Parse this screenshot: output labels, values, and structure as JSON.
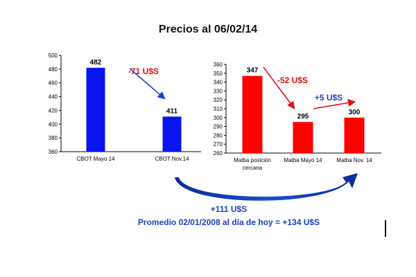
{
  "title": "Precios al 06/02/14",
  "chart_data": [
    {
      "type": "bar",
      "categories": [
        "CBOT Mayo 14",
        "CBOT Nov.14"
      ],
      "values": [
        482,
        411
      ],
      "ylim": [
        360,
        500
      ],
      "yticks": [
        360,
        380,
        400,
        420,
        440,
        460,
        480,
        500
      ],
      "color": "#0a14ee",
      "annotations": [
        {
          "text": "-71 U$S",
          "from": "CBOT Mayo 14",
          "to": "CBOT Nov.14",
          "color": "#e01010",
          "arrow_color": "#1f3fcf"
        }
      ]
    },
    {
      "type": "bar",
      "categories": [
        "Matba posición cercana",
        "Matba Mayo 14",
        "Matba Nov. 14"
      ],
      "values": [
        347,
        295,
        300
      ],
      "ylim": [
        260,
        360
      ],
      "yticks": [
        260,
        270,
        280,
        290,
        300,
        310,
        320,
        330,
        340,
        350,
        360
      ],
      "color": "#ff0000",
      "annotations": [
        {
          "text": "-52 U$S",
          "from": "Matba posición cercana",
          "to": "Matba Mayo 14",
          "color": "#e01010",
          "arrow_color": "#e01010"
        },
        {
          "text": "+5 U$S",
          "from": "Matba Mayo 14",
          "to": "Matba Nov. 14",
          "color": "#1f3fcf",
          "arrow_color": "#e01010"
        }
      ]
    }
  ],
  "footer": {
    "line1": "+111 U$S",
    "line2": "Promedio 02/01/2008 al día de hoy = +134 U$S"
  }
}
